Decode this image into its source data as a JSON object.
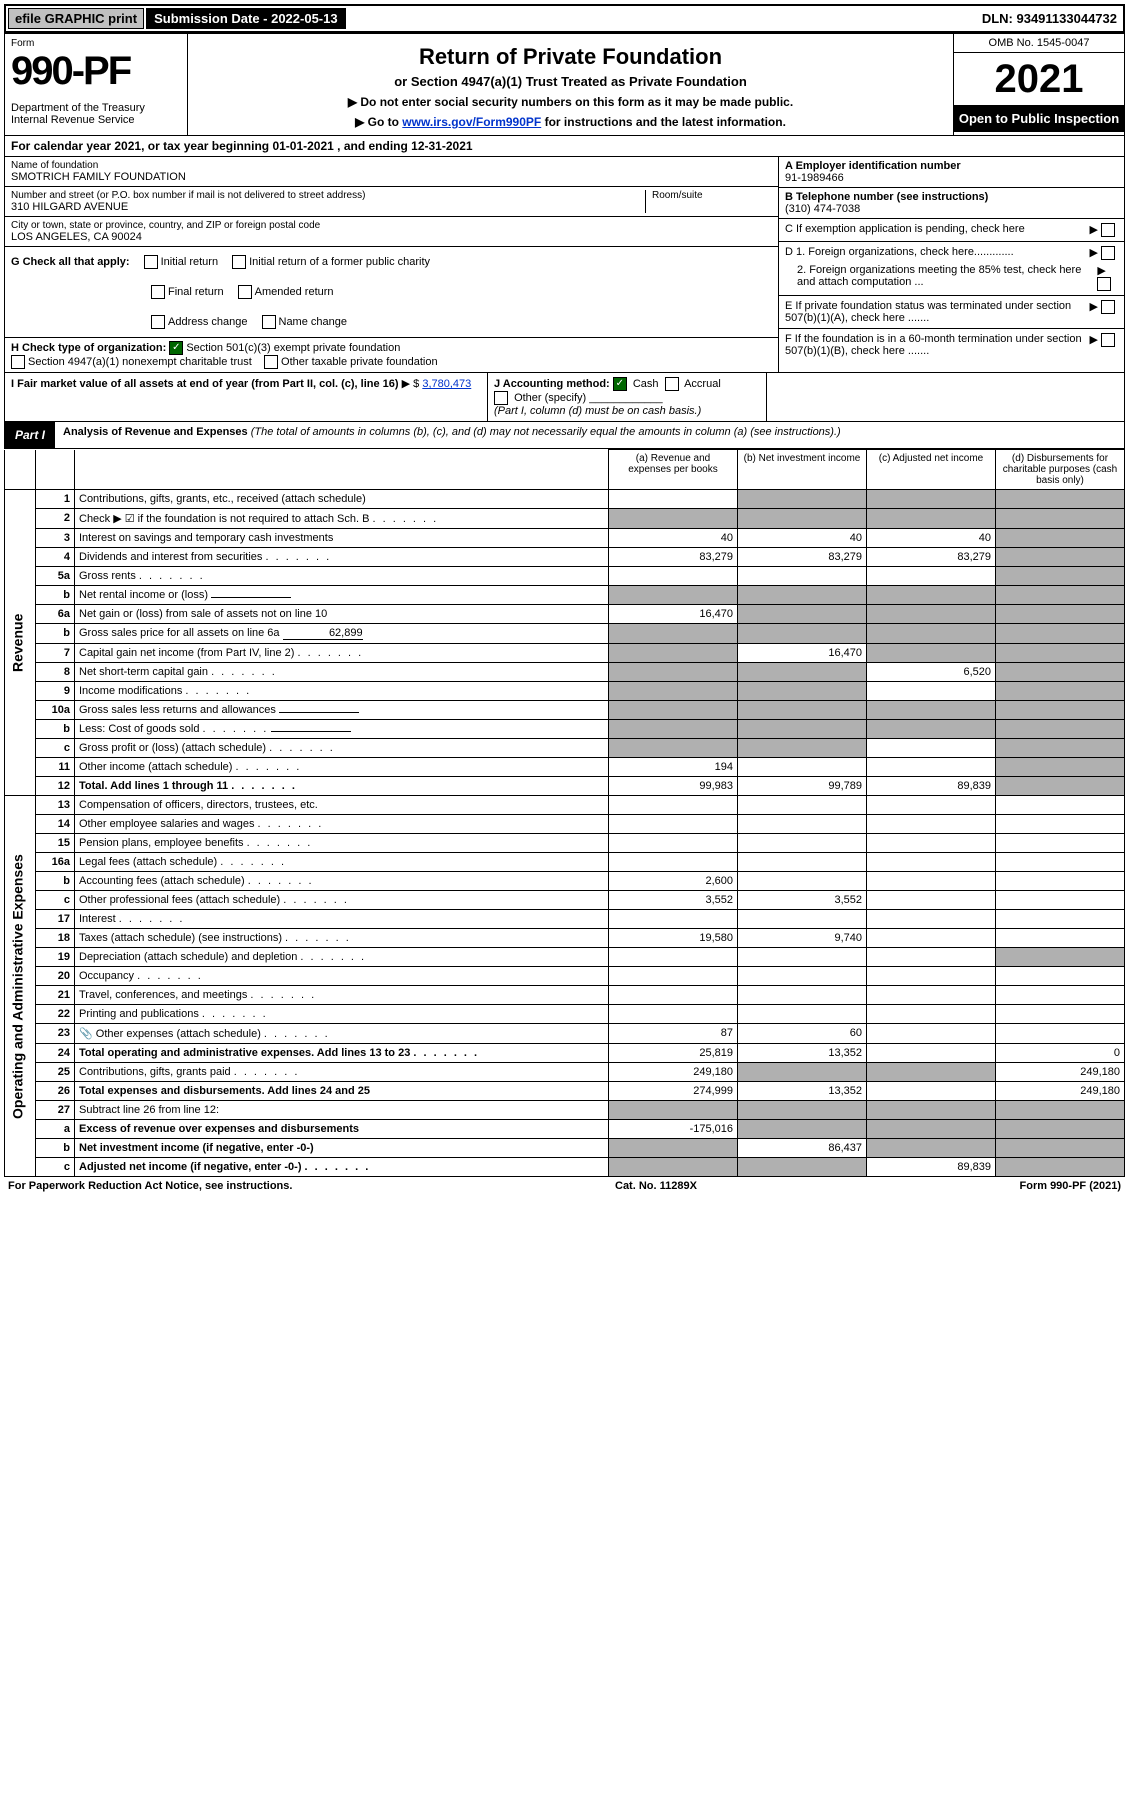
{
  "top": {
    "efile": "efile GRAPHIC print",
    "submission": "Submission Date - 2022-05-13",
    "dln": "DLN: 93491133044732"
  },
  "header": {
    "form_label": "Form",
    "form_num": "990-PF",
    "dept": "Department of the Treasury\nInternal Revenue Service",
    "title": "Return of Private Foundation",
    "subtitle": "or Section 4947(a)(1) Trust Treated as Private Foundation",
    "instr1": "▶ Do not enter social security numbers on this form as it may be made public.",
    "instr2_pre": "▶ Go to ",
    "instr2_link": "www.irs.gov/Form990PF",
    "instr2_post": " for instructions and the latest information.",
    "omb": "OMB No. 1545-0047",
    "year": "2021",
    "inspection": "Open to Public Inspection"
  },
  "cal_year": "For calendar year 2021, or tax year beginning 01-01-2021             , and ending 12-31-2021",
  "id": {
    "name_label": "Name of foundation",
    "name": "SMOTRICH FAMILY FOUNDATION",
    "addr_label": "Number and street (or P.O. box number if mail is not delivered to street address)",
    "addr": "310 HILGARD AVENUE",
    "room_label": "Room/suite",
    "city_label": "City or town, state or province, country, and ZIP or foreign postal code",
    "city": "LOS ANGELES, CA  90024",
    "a_label": "A Employer identification number",
    "a_val": "91-1989466",
    "b_label": "B Telephone number (see instructions)",
    "b_val": "(310) 474-7038",
    "c_label": "C If exemption application is pending, check here",
    "d1": "D 1. Foreign organizations, check here.............",
    "d2": "2. Foreign organizations meeting the 85% test, check here and attach computation ...",
    "e_label": "E  If private foundation status was terminated under section 507(b)(1)(A), check here .......",
    "f_label": "F  If the foundation is in a 60-month termination under section 507(b)(1)(B), check here ......."
  },
  "g": {
    "label": "G Check all that apply:",
    "opts": [
      "Initial return",
      "Final return",
      "Address change",
      "Initial return of a former public charity",
      "Amended return",
      "Name change"
    ]
  },
  "h": {
    "label": "H Check type of organization:",
    "o1": "Section 501(c)(3) exempt private foundation",
    "o2": "Section 4947(a)(1) nonexempt charitable trust",
    "o3": "Other taxable private foundation"
  },
  "i": {
    "label": "I Fair market value of all assets at end of year (from Part II, col. (c), line 16)",
    "val": "3,780,473"
  },
  "j": {
    "label": "J Accounting method:",
    "cash": "Cash",
    "accrual": "Accrual",
    "other": "Other (specify)",
    "note": "(Part I, column (d) must be on cash basis.)"
  },
  "part1": {
    "tab": "Part I",
    "title": "Analysis of Revenue and Expenses",
    "sub": "(The total of amounts in columns (b), (c), and (d) may not necessarily equal the amounts in column (a) (see instructions).)",
    "cols": {
      "a": "(a) Revenue and expenses per books",
      "b": "(b) Net investment income",
      "c": "(c) Adjusted net income",
      "d": "(d) Disbursements for charitable purposes (cash basis only)"
    }
  },
  "side": {
    "rev": "Revenue",
    "exp": "Operating and Administrative Expenses"
  },
  "rows": [
    {
      "n": "1",
      "t": "Contributions, gifts, grants, etc., received (attach schedule)",
      "a": "",
      "b": "g",
      "c": "g",
      "d": "g"
    },
    {
      "n": "2",
      "t": "Check ▶ ☑ if the foundation is not required to attach Sch. B",
      "dots": true,
      "a": "g",
      "b": "g",
      "c": "g",
      "d": "g"
    },
    {
      "n": "3",
      "t": "Interest on savings and temporary cash investments",
      "a": "40",
      "b": "40",
      "c": "40",
      "d": "g"
    },
    {
      "n": "4",
      "t": "Dividends and interest from securities",
      "dots": true,
      "a": "83,279",
      "b": "83,279",
      "c": "83,279",
      "d": "g"
    },
    {
      "n": "5a",
      "t": "Gross rents",
      "dots": true,
      "a": "",
      "b": "",
      "c": "",
      "d": "g"
    },
    {
      "n": "b",
      "t": "Net rental income or (loss)",
      "inline": true,
      "a": "g",
      "b": "g",
      "c": "g",
      "d": "g"
    },
    {
      "n": "6a",
      "t": "Net gain or (loss) from sale of assets not on line 10",
      "a": "16,470",
      "b": "g",
      "c": "g",
      "d": "g"
    },
    {
      "n": "b",
      "t": "Gross sales price for all assets on line 6a",
      "inline": true,
      "inlineval": "62,899",
      "a": "g",
      "b": "g",
      "c": "g",
      "d": "g"
    },
    {
      "n": "7",
      "t": "Capital gain net income (from Part IV, line 2)",
      "dots": true,
      "a": "g",
      "b": "16,470",
      "c": "g",
      "d": "g"
    },
    {
      "n": "8",
      "t": "Net short-term capital gain",
      "dots": true,
      "a": "g",
      "b": "g",
      "c": "6,520",
      "d": "g"
    },
    {
      "n": "9",
      "t": "Income modifications",
      "dots": true,
      "a": "g",
      "b": "g",
      "c": "",
      "d": "g"
    },
    {
      "n": "10a",
      "t": "Gross sales less returns and allowances",
      "inline": true,
      "a": "g",
      "b": "g",
      "c": "g",
      "d": "g"
    },
    {
      "n": "b",
      "t": "Less: Cost of goods sold",
      "dots": true,
      "inline": true,
      "a": "g",
      "b": "g",
      "c": "g",
      "d": "g"
    },
    {
      "n": "c",
      "t": "Gross profit or (loss) (attach schedule)",
      "dots": true,
      "a": "g",
      "b": "g",
      "c": "",
      "d": "g"
    },
    {
      "n": "11",
      "t": "Other income (attach schedule)",
      "dots": true,
      "a": "194",
      "b": "",
      "c": "",
      "d": "g"
    },
    {
      "n": "12",
      "t": "Total. Add lines 1 through 11",
      "dots": true,
      "bold": true,
      "a": "99,983",
      "b": "99,789",
      "c": "89,839",
      "d": "g"
    },
    {
      "n": "13",
      "t": "Compensation of officers, directors, trustees, etc.",
      "a": "",
      "b": "",
      "c": "",
      "d": ""
    },
    {
      "n": "14",
      "t": "Other employee salaries and wages",
      "dots": true,
      "a": "",
      "b": "",
      "c": "",
      "d": ""
    },
    {
      "n": "15",
      "t": "Pension plans, employee benefits",
      "dots": true,
      "a": "",
      "b": "",
      "c": "",
      "d": ""
    },
    {
      "n": "16a",
      "t": "Legal fees (attach schedule)",
      "dots": true,
      "a": "",
      "b": "",
      "c": "",
      "d": ""
    },
    {
      "n": "b",
      "t": "Accounting fees (attach schedule)",
      "dots": true,
      "a": "2,600",
      "b": "",
      "c": "",
      "d": ""
    },
    {
      "n": "c",
      "t": "Other professional fees (attach schedule)",
      "dots": true,
      "a": "3,552",
      "b": "3,552",
      "c": "",
      "d": ""
    },
    {
      "n": "17",
      "t": "Interest",
      "dots": true,
      "a": "",
      "b": "",
      "c": "",
      "d": ""
    },
    {
      "n": "18",
      "t": "Taxes (attach schedule) (see instructions)",
      "dots": true,
      "a": "19,580",
      "b": "9,740",
      "c": "",
      "d": ""
    },
    {
      "n": "19",
      "t": "Depreciation (attach schedule) and depletion",
      "dots": true,
      "a": "",
      "b": "",
      "c": "",
      "d": "g"
    },
    {
      "n": "20",
      "t": "Occupancy",
      "dots": true,
      "a": "",
      "b": "",
      "c": "",
      "d": ""
    },
    {
      "n": "21",
      "t": "Travel, conferences, and meetings",
      "dots": true,
      "a": "",
      "b": "",
      "c": "",
      "d": ""
    },
    {
      "n": "22",
      "t": "Printing and publications",
      "dots": true,
      "a": "",
      "b": "",
      "c": "",
      "d": ""
    },
    {
      "n": "23",
      "t": "Other expenses (attach schedule)",
      "dots": true,
      "icon": true,
      "a": "87",
      "b": "60",
      "c": "",
      "d": ""
    },
    {
      "n": "24",
      "t": "Total operating and administrative expenses. Add lines 13 to 23",
      "bold": true,
      "dots": true,
      "a": "25,819",
      "b": "13,352",
      "c": "",
      "d": "0"
    },
    {
      "n": "25",
      "t": "Contributions, gifts, grants paid",
      "dots": true,
      "a": "249,180",
      "b": "g",
      "c": "g",
      "d": "249,180"
    },
    {
      "n": "26",
      "t": "Total expenses and disbursements. Add lines 24 and 25",
      "bold": true,
      "a": "274,999",
      "b": "13,352",
      "c": "",
      "d": "249,180"
    },
    {
      "n": "27",
      "t": "Subtract line 26 from line 12:",
      "a": "g",
      "b": "g",
      "c": "g",
      "d": "g"
    },
    {
      "n": "a",
      "t": "Excess of revenue over expenses and disbursements",
      "bold": true,
      "a": "-175,016",
      "b": "g",
      "c": "g",
      "d": "g"
    },
    {
      "n": "b",
      "t": "Net investment income (if negative, enter -0-)",
      "bold": true,
      "a": "g",
      "b": "86,437",
      "c": "g",
      "d": "g"
    },
    {
      "n": "c",
      "t": "Adjusted net income (if negative, enter -0-)",
      "bold": true,
      "dots": true,
      "a": "g",
      "b": "g",
      "c": "89,839",
      "d": "g"
    }
  ],
  "footer": {
    "left": "For Paperwork Reduction Act Notice, see instructions.",
    "mid": "Cat. No. 11289X",
    "right": "Form 990-PF (2021)"
  },
  "colors": {
    "grey": "#b0b0b0",
    "link": "#0033cc",
    "check": "#006600"
  }
}
